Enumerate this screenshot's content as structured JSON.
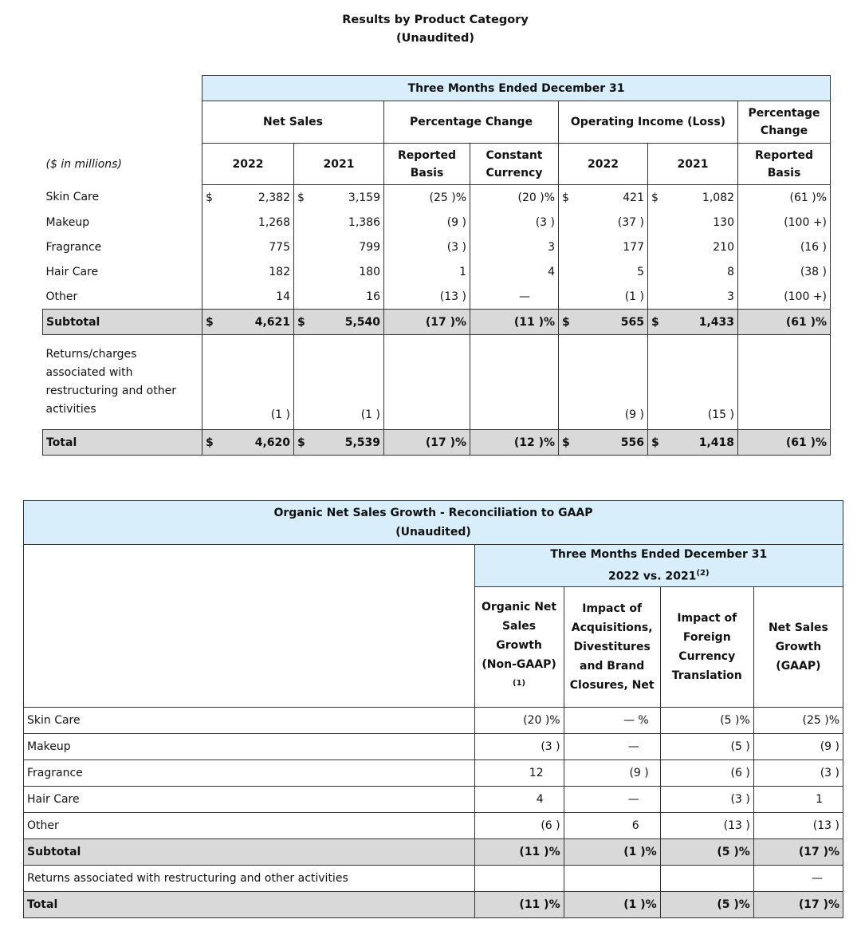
{
  "title1": {
    "line1": "Results by Product Category",
    "line2": "(Unaudited)"
  },
  "table1": {
    "period": "Three Months Ended December 31",
    "unit_label": "($ in millions)",
    "groups": {
      "net_sales": "Net Sales",
      "pct_change": "Percentage Change",
      "op_income": "Operating Income (Loss)",
      "pct_change2": "Percentage Change"
    },
    "cols": {
      "ns_2022": "2022",
      "ns_2021": "2021",
      "reported": "Reported Basis",
      "constant": "Constant Currency",
      "oi_2022": "2022",
      "oi_2021": "2021",
      "reported2": "Reported Basis"
    },
    "rows": [
      {
        "label": "Skin Care",
        "d1": "$",
        "ns22": "2,382",
        "d2": "$",
        "ns21": "3,159",
        "rep": "(25 )%",
        "cc": "(20 )%",
        "d3": "$",
        "oi22": "421",
        "d4": "$",
        "oi21": "1,082",
        "rep2": "(61 )%"
      },
      {
        "label": "Makeup",
        "d1": "",
        "ns22": "1,268",
        "d2": "",
        "ns21": "1,386",
        "rep": "(9 )",
        "cc": "(3 )",
        "d3": "",
        "oi22": "(37 )",
        "d4": "",
        "oi21": "130",
        "rep2": "(100 +)"
      },
      {
        "label": "Fragrance",
        "d1": "",
        "ns22": "775",
        "d2": "",
        "ns21": "799",
        "rep": "(3 )",
        "cc": "3",
        "d3": "",
        "oi22": "177",
        "d4": "",
        "oi21": "210",
        "rep2": "(16 )"
      },
      {
        "label": "Hair Care",
        "d1": "",
        "ns22": "182",
        "d2": "",
        "ns21": "180",
        "rep": "1",
        "cc": "4",
        "d3": "",
        "oi22": "5",
        "d4": "",
        "oi21": "8",
        "rep2": "(38 )"
      },
      {
        "label": "Other",
        "d1": "",
        "ns22": "14",
        "d2": "",
        "ns21": "16",
        "rep": "(13 )",
        "cc": "—",
        "d3": "",
        "oi22": "(1 )",
        "d4": "",
        "oi21": "3",
        "rep2": "(100 +)"
      }
    ],
    "subtotal": {
      "label": "Subtotal",
      "d1": "$",
      "ns22": "4,621",
      "d2": "$",
      "ns21": "5,540",
      "rep": "(17 )%",
      "cc": "(11 )%",
      "d3": "$",
      "oi22": "565",
      "d4": "$",
      "oi21": "1,433",
      "rep2": "(61 )%"
    },
    "returns": {
      "label_l1": "Returns/charges associated with",
      "label_l2": "restructuring and other activities",
      "ns22": "(1 )",
      "ns21": "(1 )",
      "oi22": "(9 )",
      "oi21": "(15 )"
    },
    "total": {
      "label": "Total",
      "d1": "$",
      "ns22": "4,620",
      "d2": "$",
      "ns21": "5,539",
      "rep": "(17 )%",
      "cc": "(12 )%",
      "d3": "$",
      "oi22": "556",
      "d4": "$",
      "oi21": "1,418",
      "rep2": "(61 )%"
    }
  },
  "table2": {
    "title_l1": "Organic Net Sales Growth - Reconciliation to GAAP",
    "title_l2": "(Unaudited)",
    "period_l1": "Three Months Ended December 31",
    "period_l2": "2022 vs. 2021",
    "period_sup": "(2)",
    "cols": {
      "organic": "Organic Net Sales Growth (Non-GAAP)",
      "organic_sup": "(1)",
      "acq": "Impact of Acquisitions, Divestitures and Brand Closures, Net",
      "fx": "Impact of Foreign Currency Translation",
      "gaap": "Net Sales Growth (GAAP)"
    },
    "rows": [
      {
        "label": "Skin Care",
        "org": "(20 )%",
        "acq": "— %",
        "fx": "(5 )%",
        "gaap": "(25 )%"
      },
      {
        "label": "Makeup",
        "org": "(3 )",
        "acq": "—",
        "fx": "(5 )",
        "gaap": "(9 )"
      },
      {
        "label": "Fragrance",
        "org": "12",
        "acq": "(9 )",
        "fx": "(6 )",
        "gaap": "(3 )"
      },
      {
        "label": "Hair Care",
        "org": "4",
        "acq": "—",
        "fx": "(3 )",
        "gaap": "1"
      },
      {
        "label": "Other",
        "org": "(6 )",
        "acq": "6",
        "fx": "(13 )",
        "gaap": "(13 )"
      }
    ],
    "subtotal": {
      "label": "Subtotal",
      "org": "(11 )%",
      "acq": "(1 )%",
      "fx": "(5 )%",
      "gaap": "(17 )%"
    },
    "returns": {
      "label": "Returns associated with restructuring and other activities",
      "gaap": "—"
    },
    "total": {
      "label": "Total",
      "org": "(11 )%",
      "acq": "(1 )%",
      "fx": "(5 )%",
      "gaap": "(17 )%"
    }
  }
}
